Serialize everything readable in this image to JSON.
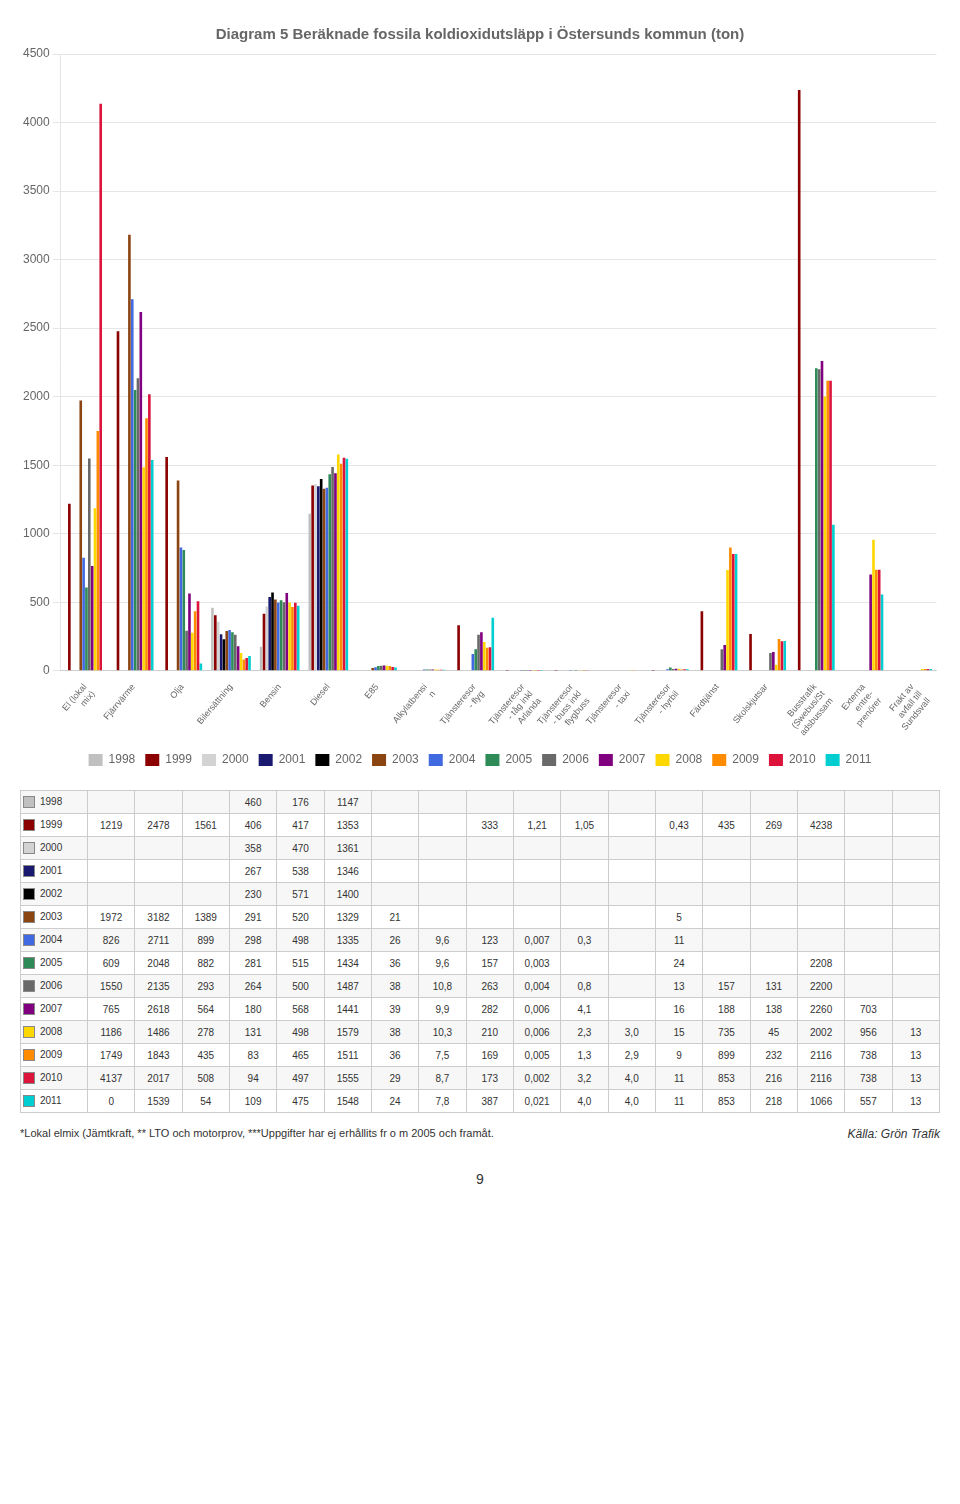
{
  "chart_data": {
    "type": "bar",
    "title": "Diagram 5 Beräknade fossila koldioxidutsläpp i Östersunds kommun (ton)",
    "categories": [
      "El (lokal\nmix)",
      "Fjärrvärme",
      "Olja",
      "Bilersättning",
      "Bensin",
      "Diesel",
      "E85",
      "Alkylatbensi\nn",
      "Tjänsteresor\n- flyg",
      "Tjänsteresor\n- tåg inkl\nArlanda",
      "Tjänsteresor\n- buss inkl\nflygbuss",
      "Tjänsteresor\n- taxi",
      "Tjänsteresor\n- hyrbil",
      "Färdtjänst",
      "Skolskjutsar",
      "Busstrafik\n(Swebus/St\nadsbussam",
      "Externa\nentre-\nprenörer",
      "Frakt av\navfall till\nSundsvall"
    ],
    "series": [
      {
        "name": "1998",
        "color": "#C0C0C0",
        "values": [
          null,
          null,
          null,
          460,
          176,
          1147,
          null,
          null,
          null,
          null,
          null,
          null,
          null,
          null,
          null,
          null,
          null,
          null
        ]
      },
      {
        "name": "1999",
        "color": "#8B0000",
        "values": [
          1219,
          2478,
          1561,
          406,
          417,
          1353,
          null,
          null,
          333,
          1.21,
          1.05,
          null,
          0.43,
          435,
          269,
          4238,
          null,
          null
        ]
      },
      {
        "name": "2000",
        "color": "#D3D3D3",
        "values": [
          null,
          null,
          null,
          358,
          470,
          1361,
          null,
          null,
          null,
          null,
          null,
          null,
          null,
          null,
          null,
          null,
          null,
          null
        ]
      },
      {
        "name": "2001",
        "color": "#191970",
        "values": [
          null,
          null,
          null,
          267,
          538,
          1346,
          null,
          null,
          null,
          null,
          null,
          null,
          null,
          null,
          null,
          null,
          null,
          null
        ]
      },
      {
        "name": "2002",
        "color": "#000000",
        "values": [
          null,
          null,
          null,
          230,
          571,
          1400,
          null,
          null,
          null,
          null,
          null,
          null,
          null,
          null,
          null,
          null,
          null,
          null
        ]
      },
      {
        "name": "2003",
        "color": "#8B4513",
        "values": [
          1972,
          3182,
          1389,
          291,
          520,
          1329,
          21,
          null,
          null,
          null,
          null,
          null,
          5,
          null,
          null,
          null,
          null,
          null
        ]
      },
      {
        "name": "2004",
        "color": "#4169E1",
        "values": [
          826,
          2711,
          899,
          298,
          498,
          1335,
          26,
          9.6,
          123,
          0.007,
          0.3,
          null,
          11,
          null,
          null,
          null,
          null,
          null
        ]
      },
      {
        "name": "2005",
        "color": "#2E8B57",
        "values": [
          609,
          2048,
          882,
          281,
          515,
          1434,
          36,
          9.6,
          157,
          0.003,
          null,
          null,
          24,
          null,
          null,
          2208,
          null,
          null
        ]
      },
      {
        "name": "2006",
        "color": "#696969",
        "values": [
          1550,
          2135,
          293,
          264,
          500,
          1487,
          38,
          10.8,
          263,
          0.004,
          0.8,
          null,
          13,
          157,
          131,
          2200,
          null,
          null
        ]
      },
      {
        "name": "2007",
        "color": "#800080",
        "values": [
          765,
          2618,
          564,
          180,
          568,
          1441,
          39,
          9.9,
          282,
          0.006,
          4.1,
          null,
          16,
          188,
          138,
          2260,
          703,
          null
        ]
      },
      {
        "name": "2008",
        "color": "#FFD700",
        "values": [
          1186,
          1486,
          278,
          131,
          498,
          1579,
          38,
          10.3,
          210,
          0.006,
          2.3,
          3.0,
          15,
          735,
          45,
          2002,
          956,
          13
        ]
      },
      {
        "name": "2009",
        "color": "#FF8C00",
        "values": [
          1749,
          1843,
          435,
          83,
          465,
          1511,
          36,
          7.5,
          169,
          0.005,
          1.3,
          2.9,
          9,
          899,
          232,
          2116,
          738,
          13
        ]
      },
      {
        "name": "2010",
        "color": "#DC143C",
        "values": [
          4137,
          2017,
          508,
          94,
          497,
          1555,
          29,
          8.7,
          173,
          0.002,
          3.2,
          4.0,
          11,
          853,
          216,
          2116,
          738,
          13
        ]
      },
      {
        "name": "2011",
        "color": "#00CED1",
        "values": [
          0,
          1539,
          54,
          109,
          475,
          1548,
          24,
          7.8,
          387,
          0.021,
          4.0,
          4.0,
          11,
          853,
          218,
          1066,
          557,
          13
        ]
      }
    ],
    "ylim": [
      0,
      4500
    ],
    "yticks": [
      0,
      500,
      1000,
      1500,
      2000,
      2500,
      3000,
      3500,
      4000,
      4500
    ],
    "grid": true,
    "legend": "bottom",
    "table": [
      [
        "1998",
        "",
        "",
        "",
        "460",
        "176",
        "1147",
        "",
        "",
        "",
        "",
        "",
        "",
        "",
        "",
        "",
        "",
        ""
      ],
      [
        "1999",
        "1219",
        "2478",
        "1561",
        "406",
        "417",
        "1353",
        "",
        "",
        "333",
        "1,21",
        "1,05",
        "",
        "0,43",
        "435",
        "269",
        "4238",
        "",
        ""
      ],
      [
        "2000",
        "",
        "",
        "",
        "358",
        "470",
        "1361",
        "",
        "",
        "",
        "",
        "",
        "",
        "",
        "",
        "",
        "",
        ""
      ],
      [
        "2001",
        "",
        "",
        "",
        "267",
        "538",
        "1346",
        "",
        "",
        "",
        "",
        "",
        "",
        "",
        "",
        "",
        "",
        ""
      ],
      [
        "2002",
        "",
        "",
        "",
        "230",
        "571",
        "1400",
        "",
        "",
        "",
        "",
        "",
        "",
        "",
        "",
        "",
        "",
        ""
      ],
      [
        "2003",
        "1972",
        "3182",
        "1389",
        "291",
        "520",
        "1329",
        "21",
        "",
        "",
        "",
        "",
        "",
        "5",
        "",
        "",
        "",
        ""
      ],
      [
        "2004",
        "826",
        "2711",
        "899",
        "298",
        "498",
        "1335",
        "26",
        "9,6",
        "123",
        "0,007",
        "0,3",
        "",
        "11",
        "",
        "",
        "",
        ""
      ],
      [
        "2005",
        "609",
        "2048",
        "882",
        "281",
        "515",
        "1434",
        "36",
        "9,6",
        "157",
        "0,003",
        "",
        "",
        "24",
        "",
        "",
        "2208",
        "",
        ""
      ],
      [
        "2006",
        "1550",
        "2135",
        "293",
        "264",
        "500",
        "1487",
        "38",
        "10,8",
        "263",
        "0,004",
        "0,8",
        "",
        "13",
        "157",
        "131",
        "2200",
        "",
        ""
      ],
      [
        "2007",
        "765",
        "2618",
        "564",
        "180",
        "568",
        "1441",
        "39",
        "9,9",
        "282",
        "0,006",
        "4,1",
        "",
        "16",
        "188",
        "138",
        "2260",
        "703",
        ""
      ],
      [
        "2008",
        "1186",
        "1486",
        "278",
        "131",
        "498",
        "1579",
        "38",
        "10,3",
        "210",
        "0,006",
        "2,3",
        "3,0",
        "15",
        "735",
        "45",
        "2002",
        "956",
        "13"
      ],
      [
        "2009",
        "1749",
        "1843",
        "435",
        "83",
        "465",
        "1511",
        "36",
        "7,5",
        "169",
        "0,005",
        "1,3",
        "2,9",
        "9",
        "899",
        "232",
        "2116",
        "738",
        "13"
      ],
      [
        "2010",
        "4137",
        "2017",
        "508",
        "94",
        "497",
        "1555",
        "29",
        "8,7",
        "173",
        "0,002",
        "3,2",
        "4,0",
        "11",
        "853",
        "216",
        "2116",
        "738",
        "13"
      ],
      [
        "2011",
        "0",
        "1539",
        "54",
        "109",
        "475",
        "1548",
        "24",
        "7,8",
        "387",
        "0,021",
        "4,0",
        "4,0",
        "11",
        "853",
        "218",
        "1066",
        "557",
        "13"
      ]
    ],
    "annotations": [
      "*Lokal elmix (Jämtkraft, ** LTO och motorprov, ***Uppgifter har ej erhållits fr o m 2005 och framåt.",
      "Källa: Grön Trafik",
      "9"
    ]
  }
}
